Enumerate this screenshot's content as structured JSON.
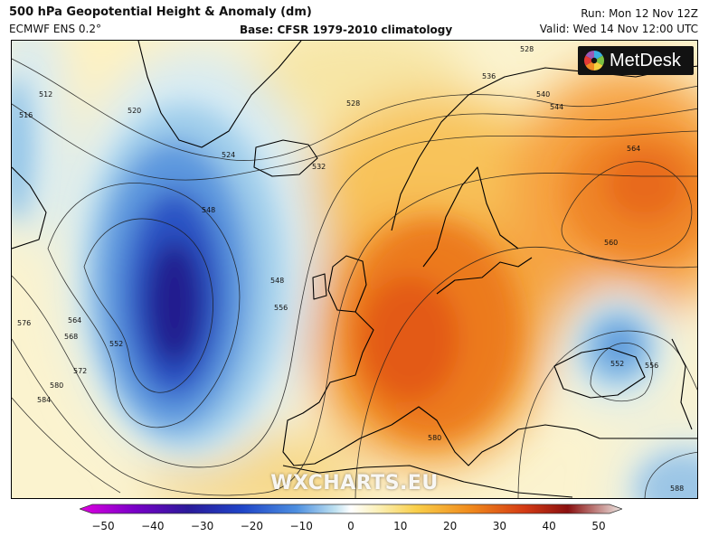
{
  "header": {
    "title": "500 hPa Geopotential Height & Anomaly (dm)",
    "model": "ECMWF ENS 0.2°",
    "base": "Base: CFSR 1979-2010 climatology",
    "run": "Run: Mon 12 Nov 12Z",
    "valid": "Valid: Wed 14 Nov 12:00 UTC"
  },
  "branding": {
    "logo": "MetDesk",
    "watermark": "WXCHARTS.EU"
  },
  "map": {
    "region": "Europe and North Atlantic",
    "features": [
      {
        "name": "atlantic-trough",
        "anomaly_dm": -35
      },
      {
        "name": "european-ridge",
        "anomaly_dm": 25
      },
      {
        "name": "russia-ridge",
        "anomaly_dm": 20
      },
      {
        "name": "black-sea-low",
        "anomaly_dm": -18
      }
    ],
    "contour_labels": [
      "516",
      "520",
      "524",
      "528",
      "528",
      "532",
      "536",
      "540",
      "544",
      "548",
      "552",
      "552",
      "556",
      "556",
      "560",
      "564",
      "564",
      "568",
      "572",
      "576",
      "580",
      "580",
      "584",
      "548",
      "512",
      "588"
    ]
  },
  "colorbar": {
    "ticks": [
      "−50",
      "−40",
      "−30",
      "−20",
      "−10",
      "0",
      "10",
      "20",
      "30",
      "40",
      "50"
    ],
    "colors": [
      "#d000d8",
      "#7a00c8",
      "#2a1a9a",
      "#1f45c8",
      "#4d8fe0",
      "#bde0f0",
      "#fbf6d2",
      "#f9cf4a",
      "#f08a1c",
      "#d43a14",
      "#8a1010",
      "#3a1010"
    ]
  }
}
